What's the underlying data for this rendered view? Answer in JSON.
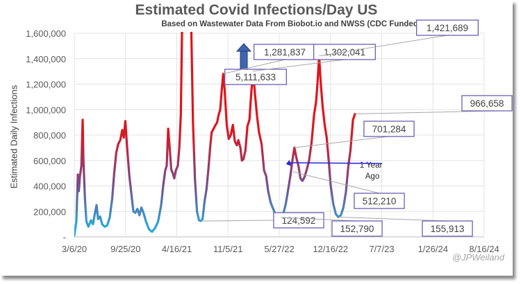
{
  "chart_data": {
    "type": "line",
    "title": "Estimated Covid Infections/Day US",
    "subtitle": "Based on Wastewater Data From Biobot.io and NWSS (CDC Funded)",
    "xlabel": "",
    "ylabel": "Estimated Daily Infections",
    "ylim": [
      0,
      1600000
    ],
    "yticks": [
      "-",
      "200,000",
      "400,000",
      "600,000",
      "800,000",
      "1,000,000",
      "1,200,000",
      "1,400,000",
      "1,600,000"
    ],
    "xticks": [
      "3/6/20",
      "9/25/20",
      "4/16/21",
      "11/5/21",
      "5/27/22",
      "12/16/22",
      "7/7/23",
      "1/26/24",
      "8/16/24"
    ],
    "x_unit": "days since 3/6/20",
    "xlim": [
      0,
      1624
    ],
    "grid": true,
    "color_scale": {
      "low": "#29a8d8",
      "mid": "#7a4b86",
      "high": "#e0141c"
    },
    "series": [
      {
        "name": "Estimated Covid Infections/Day",
        "points": [
          [
            0,
            10000
          ],
          [
            8,
            120000
          ],
          [
            14,
            490000
          ],
          [
            18,
            360000
          ],
          [
            22,
            470000
          ],
          [
            28,
            560000
          ],
          [
            33,
            920000
          ],
          [
            36,
            600000
          ],
          [
            42,
            300000
          ],
          [
            48,
            120000
          ],
          [
            56,
            80000
          ],
          [
            66,
            130000
          ],
          [
            74,
            100000
          ],
          [
            80,
            170000
          ],
          [
            88,
            250000
          ],
          [
            94,
            140000
          ],
          [
            102,
            160000
          ],
          [
            110,
            100000
          ],
          [
            120,
            80000
          ],
          [
            130,
            90000
          ],
          [
            140,
            150000
          ],
          [
            150,
            300000
          ],
          [
            158,
            500000
          ],
          [
            166,
            660000
          ],
          [
            174,
            730000
          ],
          [
            182,
            760000
          ],
          [
            190,
            840000
          ],
          [
            196,
            780000
          ],
          [
            202,
            910000
          ],
          [
            210,
            680000
          ],
          [
            218,
            480000
          ],
          [
            226,
            340000
          ],
          [
            234,
            200000
          ],
          [
            242,
            190000
          ],
          [
            250,
            220000
          ],
          [
            258,
            170000
          ],
          [
            266,
            230000
          ],
          [
            274,
            190000
          ],
          [
            284,
            120000
          ],
          [
            296,
            60000
          ],
          [
            308,
            40000
          ],
          [
            320,
            70000
          ],
          [
            332,
            120000
          ],
          [
            344,
            250000
          ],
          [
            352,
            400000
          ],
          [
            360,
            520000
          ],
          [
            366,
            560000
          ],
          [
            372,
            850000
          ],
          [
            378,
            700000
          ],
          [
            384,
            530000
          ],
          [
            390,
            500000
          ],
          [
            396,
            460000
          ],
          [
            402,
            520000
          ],
          [
            410,
            560000
          ],
          [
            416,
            700000
          ],
          [
            422,
            960000
          ],
          [
            428,
            1800000
          ],
          [
            445,
            5111633
          ],
          [
            462,
            1800000
          ],
          [
            470,
            900000
          ],
          [
            478,
            450000
          ],
          [
            486,
            200000
          ],
          [
            494,
            130000
          ],
          [
            500,
            124592
          ],
          [
            508,
            140000
          ],
          [
            516,
            280000
          ],
          [
            524,
            380000
          ],
          [
            532,
            550000
          ],
          [
            538,
            700000
          ],
          [
            544,
            820000
          ],
          [
            552,
            850000
          ],
          [
            560,
            880000
          ],
          [
            566,
            900000
          ],
          [
            572,
            960000
          ],
          [
            578,
            1000000
          ],
          [
            584,
            1150000
          ],
          [
            590,
            1281837
          ],
          [
            596,
            1150000
          ],
          [
            604,
            880000
          ],
          [
            612,
            770000
          ],
          [
            620,
            800000
          ],
          [
            628,
            880000
          ],
          [
            636,
            750000
          ],
          [
            644,
            720000
          ],
          [
            650,
            760000
          ],
          [
            658,
            700000
          ],
          [
            664,
            600000
          ],
          [
            670,
            610000
          ],
          [
            678,
            680000
          ],
          [
            686,
            870000
          ],
          [
            694,
            920000
          ],
          [
            700,
            1100000
          ],
          [
            708,
            1302041
          ],
          [
            716,
            1120000
          ],
          [
            724,
            950000
          ],
          [
            732,
            820000
          ],
          [
            742,
            730000
          ],
          [
            752,
            520000
          ],
          [
            760,
            480000
          ],
          [
            768,
            360000
          ],
          [
            778,
            270000
          ],
          [
            788,
            220000
          ],
          [
            798,
            170000
          ],
          [
            808,
            160000
          ],
          [
            818,
            152790
          ],
          [
            828,
            180000
          ],
          [
            838,
            260000
          ],
          [
            848,
            380000
          ],
          [
            856,
            480000
          ],
          [
            864,
            600000
          ],
          [
            872,
            701284
          ],
          [
            880,
            620000
          ],
          [
            888,
            560000
          ],
          [
            896,
            460000
          ],
          [
            904,
            440000
          ],
          [
            912,
            470000
          ],
          [
            920,
            520000
          ],
          [
            930,
            600000
          ],
          [
            940,
            740000
          ],
          [
            950,
            960000
          ],
          [
            958,
            1060000
          ],
          [
            964,
            1220000
          ],
          [
            970,
            1421689
          ],
          [
            976,
            1220000
          ],
          [
            984,
            1020000
          ],
          [
            992,
            880000
          ],
          [
            1000,
            780000
          ],
          [
            1008,
            600000
          ],
          [
            1016,
            400000
          ],
          [
            1026,
            260000
          ],
          [
            1036,
            180000
          ],
          [
            1046,
            155913
          ],
          [
            1056,
            170000
          ],
          [
            1066,
            230000
          ],
          [
            1076,
            350000
          ],
          [
            1086,
            560000
          ],
          [
            1094,
            680000
          ],
          [
            1104,
            920000
          ],
          [
            1112,
            966658
          ]
        ]
      }
    ],
    "annotations": [
      {
        "label": "5,111,633",
        "x": 445,
        "y": 5111633,
        "note": "off-scale peak, upward arrow"
      },
      {
        "label": "1,281,837",
        "x": 590,
        "y": 1281837
      },
      {
        "label": "1,302,041",
        "x": 708,
        "y": 1302041
      },
      {
        "label": "124,592",
        "x": 500,
        "y": 124592
      },
      {
        "label": "152,790",
        "x": 818,
        "y": 152790
      },
      {
        "label": "701,284",
        "x": 872,
        "y": 701284
      },
      {
        "label": "512,210",
        "x": 866,
        "y": 512210
      },
      {
        "label": "1,421,689",
        "x": 970,
        "y": 1421689
      },
      {
        "label": "155,913",
        "x": 1046,
        "y": 155913
      },
      {
        "label": "966,658",
        "x": 1112,
        "y": 966658
      }
    ],
    "callout": {
      "label_line1": "1 Year",
      "label_line2": "Ago",
      "x": 866,
      "y": 512210
    },
    "credit": "@JPWeiland"
  }
}
